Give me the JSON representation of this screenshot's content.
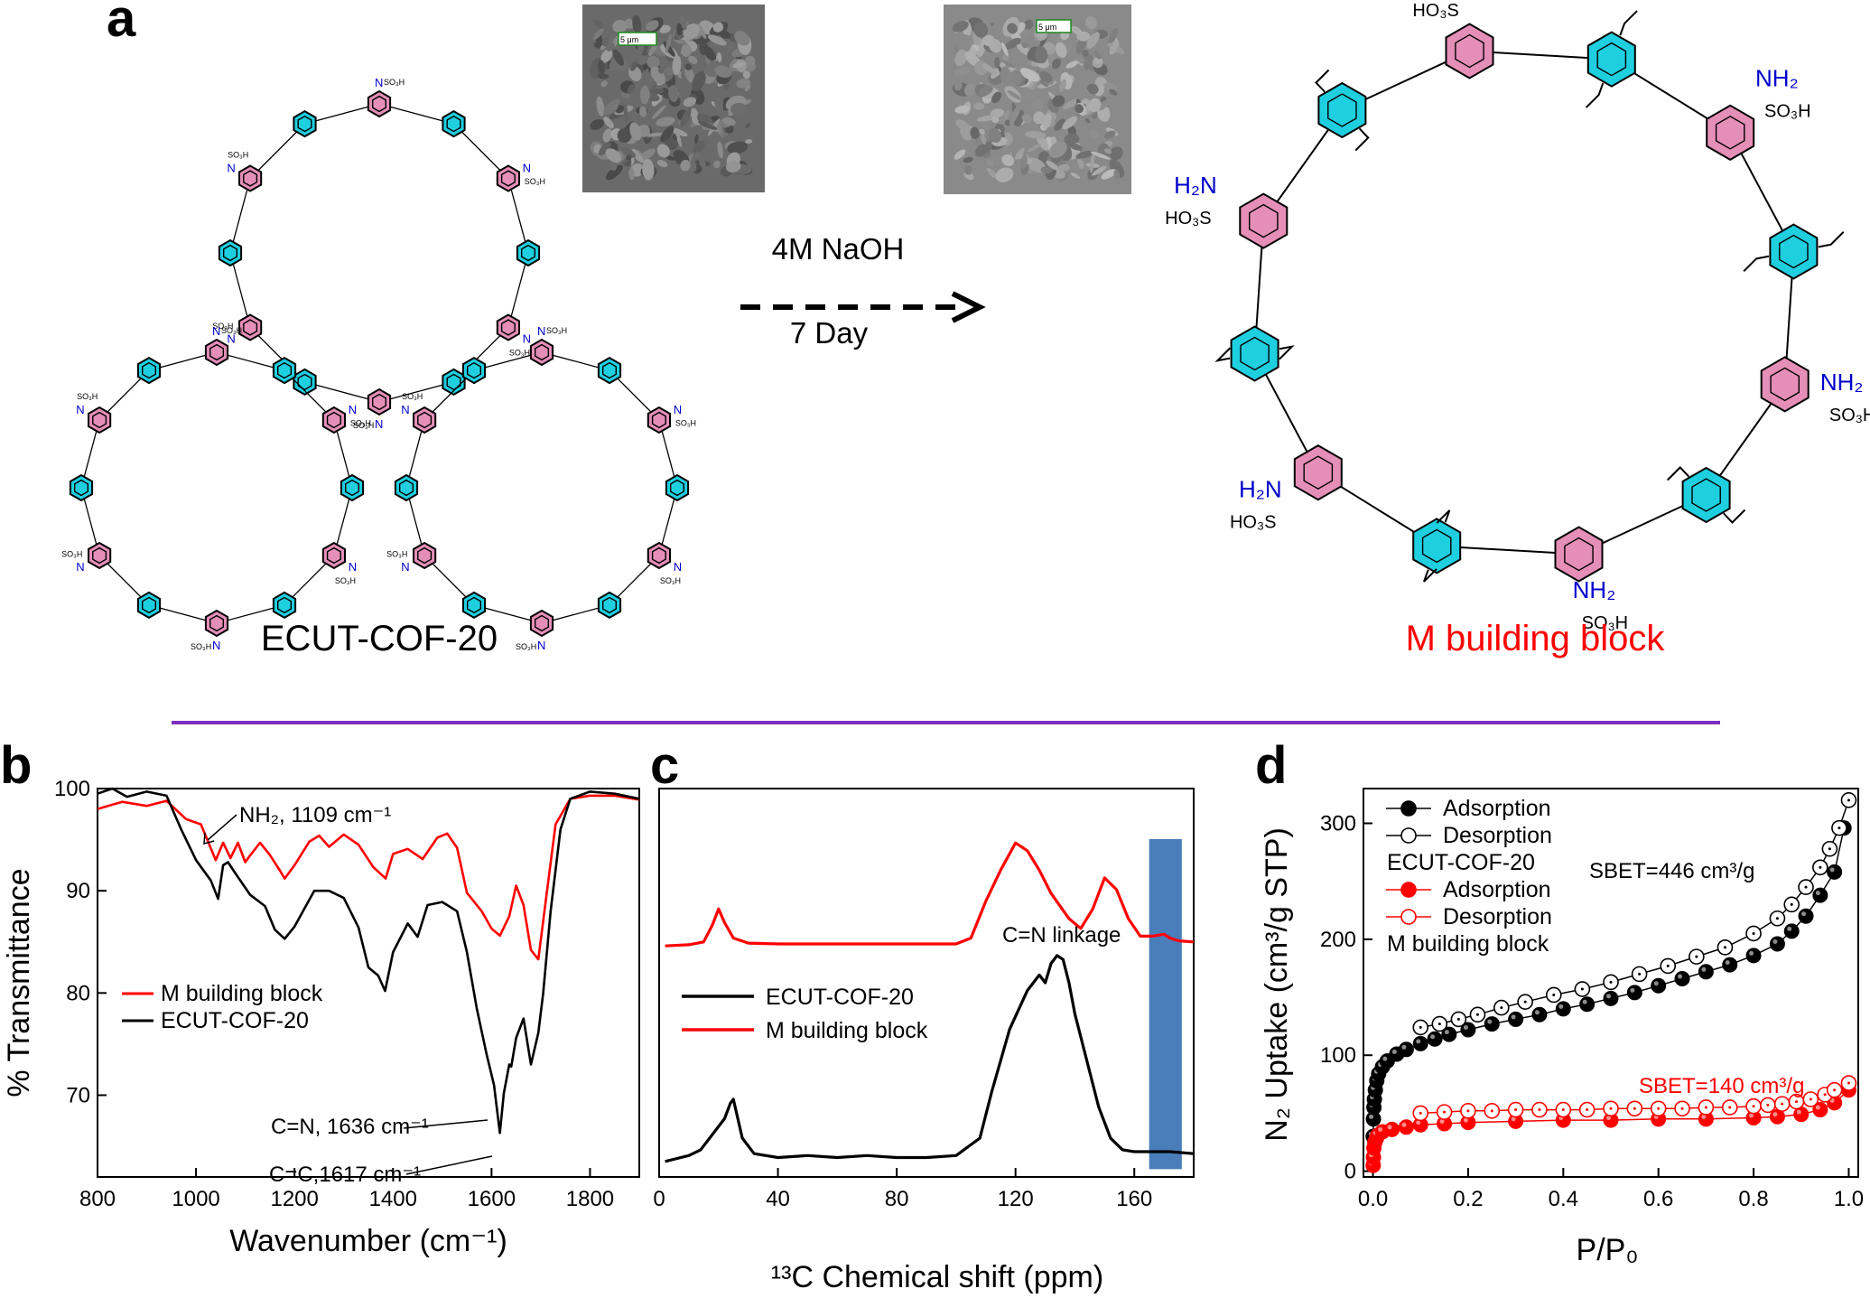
{
  "panel_a": {
    "letter": "a",
    "reagent": "4M NaOH",
    "duration": "7 Day",
    "left_label": "ECUT-COF-20",
    "right_label": "M building block",
    "so3h": "SO₃H",
    "ho3s": "HO₃S",
    "nh2": "NH₂",
    "h2n": "H₂N",
    "sem_scale_1": "5 μm",
    "sem_scale_2": "5 μm",
    "colors": {
      "benzene_pink": "#e58fb8",
      "benzene_cyan": "#1ecfe0",
      "amine_blue": "#0000cc",
      "title_red": "#ff0000",
      "divider": "#7b2fbf"
    }
  },
  "chart_data": [
    {
      "panel": "b",
      "type": "line",
      "xlabel": "Wavenumber (cm⁻¹)",
      "ylabel": "% Transmittance",
      "xlim": [
        800,
        1900
      ],
      "ylim": [
        62,
        100
      ],
      "xticks": [
        "800",
        "1000",
        "1200",
        "1400",
        "1600",
        "1800"
      ],
      "yticks": [
        "70",
        "80",
        "90",
        "100"
      ],
      "legend": [
        "M building block",
        "ECUT-COF-20"
      ],
      "annotations": [
        "NH₂, 1109 cm⁻¹",
        "C=N, 1636 cm⁻¹",
        "C=C,1617 cm⁻¹"
      ],
      "series": [
        {
          "name": "M building block",
          "color": "#ff0000",
          "x": [
            800,
            850,
            900,
            940,
            980,
            1010,
            1040,
            1055,
            1070,
            1085,
            1100,
            1109,
            1130,
            1150,
            1170,
            1180,
            1200,
            1230,
            1250,
            1270,
            1300,
            1330,
            1360,
            1385,
            1400,
            1430,
            1460,
            1490,
            1510,
            1530,
            1550,
            1580,
            1600,
            1617,
            1636,
            1650,
            1665,
            1680,
            1695,
            1710,
            1730,
            1760,
            1800,
            1850,
            1900
          ],
          "y": [
            98,
            98.7,
            98.3,
            98.8,
            97,
            96.5,
            93,
            94.7,
            93.2,
            94.7,
            92.8,
            93.4,
            94.7,
            93.5,
            92,
            91.2,
            92.5,
            94.8,
            95.4,
            94.3,
            95.5,
            94.5,
            92.3,
            91.2,
            93.6,
            94.1,
            93.1,
            95.2,
            95.6,
            94.2,
            89.8,
            88,
            86.3,
            85.6,
            87.5,
            90.5,
            88.6,
            84.2,
            83.3,
            89,
            96.5,
            99,
            99.3,
            99.3,
            98.9
          ]
        },
        {
          "name": "ECUT-COF-20",
          "color": "#000000",
          "x": [
            800,
            830,
            860,
            900,
            940,
            970,
            1000,
            1030,
            1045,
            1055,
            1065,
            1080,
            1110,
            1140,
            1160,
            1180,
            1200,
            1240,
            1270,
            1300,
            1330,
            1350,
            1370,
            1384,
            1400,
            1430,
            1450,
            1470,
            1500,
            1530,
            1550,
            1570,
            1590,
            1605,
            1617,
            1625,
            1636,
            1640,
            1650,
            1665,
            1680,
            1695,
            1705,
            1720,
            1740,
            1760,
            1800,
            1850,
            1900
          ],
          "y": [
            99.5,
            100,
            99.2,
            99.7,
            99.3,
            96,
            93,
            91,
            89.2,
            92.5,
            92.8,
            91.7,
            89.6,
            88.5,
            86.2,
            85.3,
            86.5,
            90,
            90,
            89.3,
            86.4,
            82.5,
            81.7,
            80.2,
            84,
            86.8,
            85.5,
            88.6,
            88.9,
            88,
            84,
            78.5,
            74,
            71,
            66.3,
            70.2,
            73,
            72.8,
            75.6,
            77.5,
            73,
            76.1,
            80,
            88,
            96,
            99,
            99.7,
            99.5,
            99
          ]
        }
      ]
    },
    {
      "panel": "c",
      "type": "line",
      "xlabel": "¹³C Chemical shift (ppm)",
      "ylabel": "",
      "xlim": [
        0,
        180
      ],
      "ylim": [
        0,
        1
      ],
      "xticks": [
        "0",
        "40",
        "80",
        "120",
        "160"
      ],
      "legend": [
        "ECUT-COF-20",
        "M building block"
      ],
      "annotations": [
        "C=N linkage"
      ],
      "highlight_band_ppm": [
        165,
        176
      ],
      "highlight_color": "#4a7ebb",
      "series": [
        {
          "name": "M building block",
          "color": "#ff0000",
          "x": [
            2,
            10,
            15,
            18,
            20,
            22,
            25,
            30,
            40,
            60,
            80,
            100,
            105,
            110,
            115,
            120,
            124,
            128,
            132,
            138,
            142,
            146,
            150,
            154,
            158,
            162,
            166,
            170,
            172,
            175,
            180
          ],
          "y": [
            0.595,
            0.598,
            0.605,
            0.65,
            0.69,
            0.655,
            0.615,
            0.602,
            0.6,
            0.6,
            0.6,
            0.6,
            0.615,
            0.71,
            0.79,
            0.86,
            0.84,
            0.79,
            0.73,
            0.665,
            0.64,
            0.69,
            0.77,
            0.74,
            0.665,
            0.62,
            0.62,
            0.625,
            0.615,
            0.608,
            0.605
          ]
        },
        {
          "name": "ECUT-COF-20",
          "color": "#000000",
          "x": [
            2,
            10,
            14,
            18,
            22,
            24,
            25,
            28,
            32,
            40,
            50,
            60,
            70,
            80,
            90,
            100,
            108,
            112,
            118,
            124,
            128,
            130,
            132,
            134,
            136,
            138,
            140,
            144,
            148,
            152,
            156,
            160,
            165,
            172,
            180
          ],
          "y": [
            0.04,
            0.055,
            0.07,
            0.11,
            0.15,
            0.19,
            0.2,
            0.1,
            0.06,
            0.05,
            0.055,
            0.05,
            0.055,
            0.05,
            0.05,
            0.055,
            0.1,
            0.22,
            0.38,
            0.48,
            0.52,
            0.5,
            0.55,
            0.57,
            0.56,
            0.5,
            0.42,
            0.3,
            0.18,
            0.1,
            0.07,
            0.065,
            0.065,
            0.065,
            0.06
          ]
        }
      ]
    },
    {
      "panel": "d",
      "type": "scatter",
      "xlabel": "P/P₀",
      "ylabel": "N₂ Uptake (cm³/g STP)",
      "xlim": [
        -0.02,
        1.02
      ],
      "ylim": [
        -5,
        330
      ],
      "xticks": [
        "0.0",
        "0.2",
        "0.4",
        "0.6",
        "0.8",
        "1.0"
      ],
      "yticks": [
        "0",
        "100",
        "200",
        "300"
      ],
      "legend": [
        "Adsorption",
        "Desorption",
        "ECUT-COF-20",
        "Adsorption",
        "Desorption",
        "M building block"
      ],
      "annotations": [
        "SBET=446 cm³/g",
        "SBET=140 cm³/g"
      ],
      "series": [
        {
          "name": "ECUT-COF-20 Adsorption",
          "color": "#000000",
          "filled": true,
          "x": [
            0.0005,
            0.001,
            0.002,
            0.003,
            0.005,
            0.008,
            0.012,
            0.02,
            0.03,
            0.05,
            0.07,
            0.1,
            0.13,
            0.16,
            0.2,
            0.25,
            0.3,
            0.35,
            0.4,
            0.45,
            0.5,
            0.55,
            0.6,
            0.65,
            0.7,
            0.75,
            0.8,
            0.85,
            0.88,
            0.91,
            0.94,
            0.97,
            0.99
          ],
          "y": [
            30,
            45,
            55,
            62,
            70,
            78,
            84,
            90,
            95,
            101,
            105,
            110,
            114,
            118,
            122,
            127,
            131,
            135,
            140,
            144,
            149,
            154,
            160,
            166,
            172,
            178,
            186,
            196,
            207,
            220,
            238,
            258,
            296
          ]
        },
        {
          "name": "ECUT-COF-20 Desorption",
          "color": "#000000",
          "filled": false,
          "x": [
            0.1,
            0.14,
            0.18,
            0.22,
            0.27,
            0.32,
            0.38,
            0.44,
            0.5,
            0.56,
            0.62,
            0.68,
            0.74,
            0.8,
            0.85,
            0.88,
            0.91,
            0.94,
            0.96,
            0.98,
            1.0
          ],
          "y": [
            124,
            127,
            131,
            135,
            141,
            146,
            152,
            157,
            163,
            170,
            177,
            185,
            193,
            205,
            218,
            230,
            245,
            262,
            278,
            296,
            320
          ]
        },
        {
          "name": "M building block Adsorption",
          "color": "#ff0000",
          "filled": true,
          "x": [
            0.0005,
            0.001,
            0.002,
            0.004,
            0.007,
            0.01,
            0.02,
            0.04,
            0.07,
            0.1,
            0.15,
            0.2,
            0.3,
            0.4,
            0.5,
            0.6,
            0.7,
            0.8,
            0.85,
            0.9,
            0.94,
            0.97,
            1.0
          ],
          "y": [
            5,
            12,
            20,
            25,
            28,
            31,
            34,
            36,
            38,
            40,
            41,
            42,
            43,
            44,
            44,
            45,
            45,
            46,
            47,
            49,
            53,
            59,
            70
          ]
        },
        {
          "name": "M building block Desorption",
          "color": "#ff0000",
          "filled": false,
          "x": [
            0.1,
            0.15,
            0.2,
            0.25,
            0.3,
            0.35,
            0.4,
            0.45,
            0.5,
            0.55,
            0.6,
            0.65,
            0.7,
            0.75,
            0.8,
            0.83,
            0.86,
            0.89,
            0.92,
            0.95,
            0.97,
            1.0
          ],
          "y": [
            50,
            51,
            52,
            52,
            53,
            53,
            53,
            53,
            54,
            54,
            54,
            54,
            55,
            55,
            56,
            57,
            58,
            60,
            62,
            66,
            70,
            76
          ]
        }
      ]
    }
  ]
}
